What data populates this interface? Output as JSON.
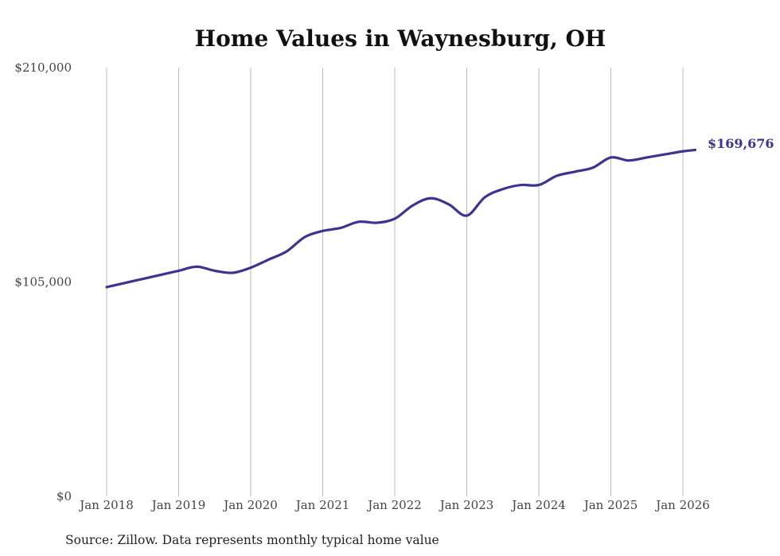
{
  "chart_data": {
    "type": "line",
    "title": "Home Values in Waynesburg, OH",
    "xlabel": "",
    "ylabel": "",
    "ylim": [
      0,
      210000
    ],
    "y_ticks": [
      {
        "value": 0,
        "label": "$0"
      },
      {
        "value": 105000,
        "label": "$105,000"
      },
      {
        "value": 210000,
        "label": "$210,000"
      }
    ],
    "x_ticks": [
      {
        "value": 2018,
        "label": "Jan 2018"
      },
      {
        "value": 2019,
        "label": "Jan 2019"
      },
      {
        "value": 2020,
        "label": "Jan 2020"
      },
      {
        "value": 2021,
        "label": "Jan 2021"
      },
      {
        "value": 2022,
        "label": "Jan 2022"
      },
      {
        "value": 2023,
        "label": "Jan 2023"
      },
      {
        "value": 2024,
        "label": "Jan 2024"
      },
      {
        "value": 2025,
        "label": "Jan 2025"
      },
      {
        "value": 2026,
        "label": "Jan 2026"
      }
    ],
    "xlim": [
      2018,
      2026.17
    ],
    "grid": "vertical",
    "series": [
      {
        "name": "Typical home value",
        "color": "#3b3590",
        "x": [
          2018.0,
          2018.25,
          2018.5,
          2018.75,
          2019.0,
          2019.25,
          2019.5,
          2019.75,
          2020.0,
          2020.25,
          2020.5,
          2020.75,
          2021.0,
          2021.25,
          2021.5,
          2021.75,
          2022.0,
          2022.25,
          2022.5,
          2022.75,
          2023.0,
          2023.25,
          2023.5,
          2023.75,
          2024.0,
          2024.25,
          2024.5,
          2024.75,
          2025.0,
          2025.25,
          2025.5,
          2025.75,
          2026.0,
          2026.17
        ],
        "values": [
          102500,
          104500,
          106500,
          108500,
          110500,
          112500,
          110500,
          109500,
          112000,
          116000,
          120000,
          127000,
          130000,
          131500,
          134500,
          134000,
          136000,
          142500,
          146000,
          143000,
          137500,
          146500,
          150500,
          152500,
          152500,
          157000,
          159000,
          161000,
          166000,
          164500,
          166000,
          167500,
          169000,
          169676
        ]
      }
    ],
    "end_label": "$169,676",
    "source_note": "Source: Zillow. Data represents monthly typical home value"
  }
}
